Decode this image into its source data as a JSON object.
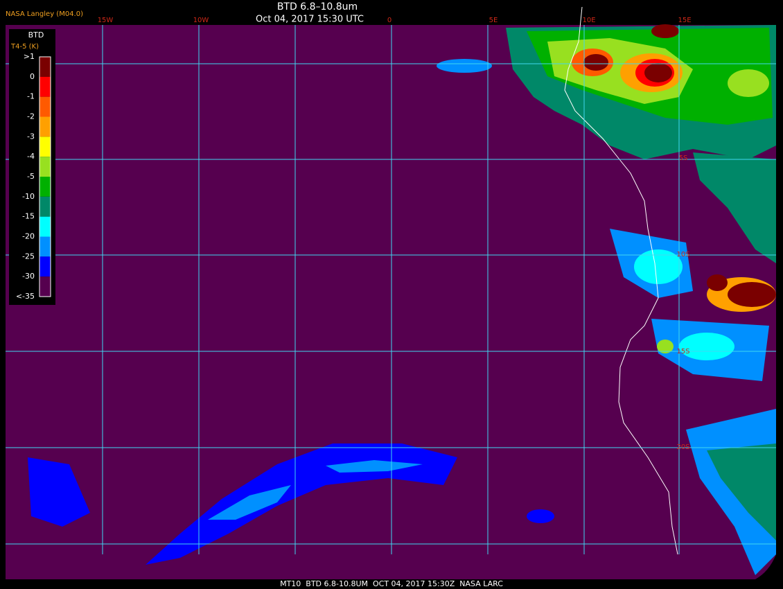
{
  "header": {
    "source": "NASA Langley (M04.0)",
    "title": "BTD 6.8–10.8um",
    "time": "Oct 04, 2017 15:30 UTC"
  },
  "map": {
    "longitude_labels": [
      "15W",
      "10W",
      "0",
      "5E",
      "10E",
      "15E"
    ],
    "latitude_labels": [
      "5S",
      "10S",
      "15S",
      "20S"
    ]
  },
  "legend": {
    "title": "BTD",
    "units": "T4-5 (K)",
    "labels": [
      ">1",
      "0",
      "-1",
      "-2",
      "-3",
      "-4",
      "-5",
      "-10",
      "-15",
      "-20",
      "-25",
      "-30",
      "<-35"
    ],
    "colors": [
      "#7a0000",
      "#ff0000",
      "#ff5a00",
      "#ffa000",
      "#ffff00",
      "#98e020",
      "#00b000",
      "#008868",
      "#00ffff",
      "#0090ff",
      "#0000ff",
      "#56004f"
    ]
  },
  "footer": {
    "text": "MT10  BTD 6.8-10.8UM  OCT 04, 2017 15:30Z  NASA LARC"
  }
}
